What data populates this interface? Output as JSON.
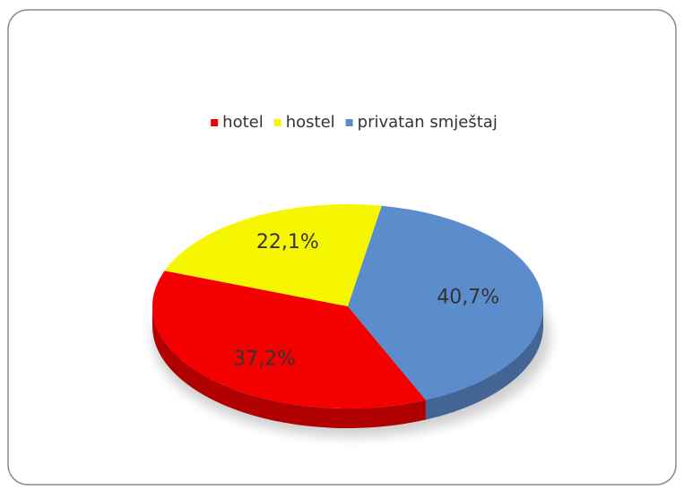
{
  "chart_data": {
    "type": "pie",
    "categories": [
      "hotel",
      "hostel",
      "privatan smještaj"
    ],
    "values": [
      37.2,
      22.1,
      40.7
    ],
    "value_labels": [
      "37,2%",
      "22,1%",
      "40,7%"
    ],
    "colors": [
      "#f40000",
      "#f6f600",
      "#5b8ccc"
    ],
    "legend": "top"
  }
}
